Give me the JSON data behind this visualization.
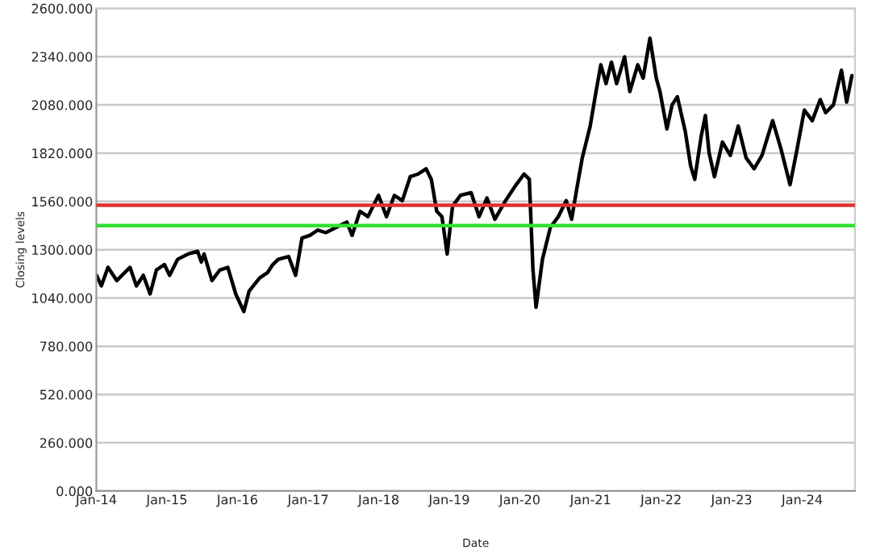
{
  "chart_data": {
    "type": "line",
    "xlabel": "Date",
    "ylabel": "Closing levels",
    "x": [
      "2014-01-02",
      "2014-01-27",
      "2014-03-02",
      "2014-04-17",
      "2014-05-14",
      "2014-06-24",
      "2014-07-27",
      "2014-09-01",
      "2014-10-06",
      "2014-11-08",
      "2014-12-19",
      "2015-01-15",
      "2015-02-25",
      "2015-04-21",
      "2015-06-09",
      "2015-06-28",
      "2015-07-12",
      "2015-08-22",
      "2015-10-02",
      "2015-11-12",
      "2015-12-23",
      "2016-02-03",
      "2016-03-01",
      "2016-04-25",
      "2016-06-05",
      "2016-07-02",
      "2016-07-30",
      "2016-09-22",
      "2016-10-28",
      "2016-11-30",
      "2017-01-10",
      "2017-02-20",
      "2017-04-02",
      "2017-05-26",
      "2017-07-20",
      "2017-08-16",
      "2017-09-26",
      "2017-11-06",
      "2017-12-31",
      "2018-02-10",
      "2018-03-23",
      "2018-05-03",
      "2018-06-13",
      "2018-07-24",
      "2018-09-03",
      "2018-09-30",
      "2018-10-28",
      "2018-11-24",
      "2018-12-21",
      "2019-01-18",
      "2019-02-28",
      "2019-04-24",
      "2019-06-04",
      "2019-07-15",
      "2019-08-25",
      "2019-10-19",
      "2019-12-13",
      "2020-01-23",
      "2020-02-19",
      "2020-03-09",
      "2020-03-25",
      "2020-04-27",
      "2020-06-07",
      "2020-07-18",
      "2020-08-28",
      "2020-09-25",
      "2020-10-23",
      "2020-11-19",
      "2020-12-30",
      "2021-01-27",
      "2021-02-23",
      "2021-03-22",
      "2021-04-19",
      "2021-05-16",
      "2021-06-26",
      "2021-07-23",
      "2021-09-02",
      "2021-09-30",
      "2021-11-04",
      "2021-12-07",
      "2021-12-26",
      "2022-01-31",
      "2022-02-27",
      "2022-03-26",
      "2022-05-06",
      "2022-06-03",
      "2022-06-24",
      "2022-07-27",
      "2022-08-18",
      "2022-09-06",
      "2022-10-04",
      "2022-11-14",
      "2022-12-25",
      "2023-02-04",
      "2023-03-17",
      "2023-04-27",
      "2023-06-07",
      "2023-08-01",
      "2023-09-11",
      "2023-10-30",
      "2023-12-02",
      "2024-01-12",
      "2024-02-22",
      "2024-04-03",
      "2024-05-01",
      "2024-06-11",
      "2024-07-22",
      "2024-08-18",
      "2024-09-14"
    ],
    "series": [
      {
        "color": "#000000",
        "values": [
          1162,
          1105,
          1205,
          1134,
          1162,
          1205,
          1105,
          1162,
          1062,
          1191,
          1220,
          1162,
          1248,
          1277,
          1291,
          1234,
          1277,
          1134,
          1191,
          1205,
          1062,
          967,
          1076,
          1148,
          1177,
          1220,
          1248,
          1263,
          1162,
          1363,
          1377,
          1406,
          1392,
          1420,
          1449,
          1377,
          1507,
          1478,
          1593,
          1478,
          1593,
          1564,
          1693,
          1708,
          1736,
          1679,
          1507,
          1478,
          1277,
          1535,
          1593,
          1607,
          1478,
          1578,
          1464,
          1564,
          1650,
          1708,
          1679,
          1191,
          990,
          1248,
          1420,
          1478,
          1564,
          1464,
          1636,
          1794,
          1966,
          2138,
          2296,
          2195,
          2310,
          2195,
          2339,
          2152,
          2296,
          2224,
          2439,
          2224,
          2152,
          1951,
          2081,
          2124,
          1937,
          1750,
          1679,
          1909,
          2023,
          1823,
          1693,
          1880,
          1808,
          1966,
          1794,
          1736,
          1808,
          1995,
          1851,
          1650,
          1823,
          2052,
          1995,
          2109,
          2038,
          2081,
          2267,
          2095,
          2238
        ]
      }
    ],
    "xlim": [
      "2014-01-01",
      "2024-09-30"
    ],
    "xticks": [
      {
        "value": "2014-01-01",
        "label": "Jan-14"
      },
      {
        "value": "2015-01-01",
        "label": "Jan-15"
      },
      {
        "value": "2016-01-01",
        "label": "Jan-16"
      },
      {
        "value": "2017-01-01",
        "label": "Jan-17"
      },
      {
        "value": "2018-01-01",
        "label": "Jan-18"
      },
      {
        "value": "2019-01-01",
        "label": "Jan-19"
      },
      {
        "value": "2020-01-01",
        "label": "Jan-20"
      },
      {
        "value": "2021-01-01",
        "label": "Jan-21"
      },
      {
        "value": "2022-01-01",
        "label": "Jan-22"
      },
      {
        "value": "2023-01-01",
        "label": "Jan-23"
      },
      {
        "value": "2024-01-01",
        "label": "Jan-24"
      }
    ],
    "ylim": [
      0,
      2600
    ],
    "yticks": [
      {
        "value": 0,
        "label": "0.000"
      },
      {
        "value": 260,
        "label": "260.000"
      },
      {
        "value": 520,
        "label": "520.000"
      },
      {
        "value": 780,
        "label": "780.000"
      },
      {
        "value": 1040,
        "label": "1040.000"
      },
      {
        "value": 1300,
        "label": "1300.000"
      },
      {
        "value": 1560,
        "label": "1560.000"
      },
      {
        "value": 1820,
        "label": "1820.000"
      },
      {
        "value": 2080,
        "label": "2080.000"
      },
      {
        "value": 2340,
        "label": "2340.000"
      },
      {
        "value": 2600,
        "label": "2600.000"
      }
    ],
    "ref_lines": [
      {
        "axis": "y",
        "value": 1540,
        "color": "#e03030"
      },
      {
        "axis": "y",
        "value": 1430,
        "color": "#30e030"
      }
    ],
    "grid": "y",
    "line_style": "solid",
    "marker": "none"
  }
}
